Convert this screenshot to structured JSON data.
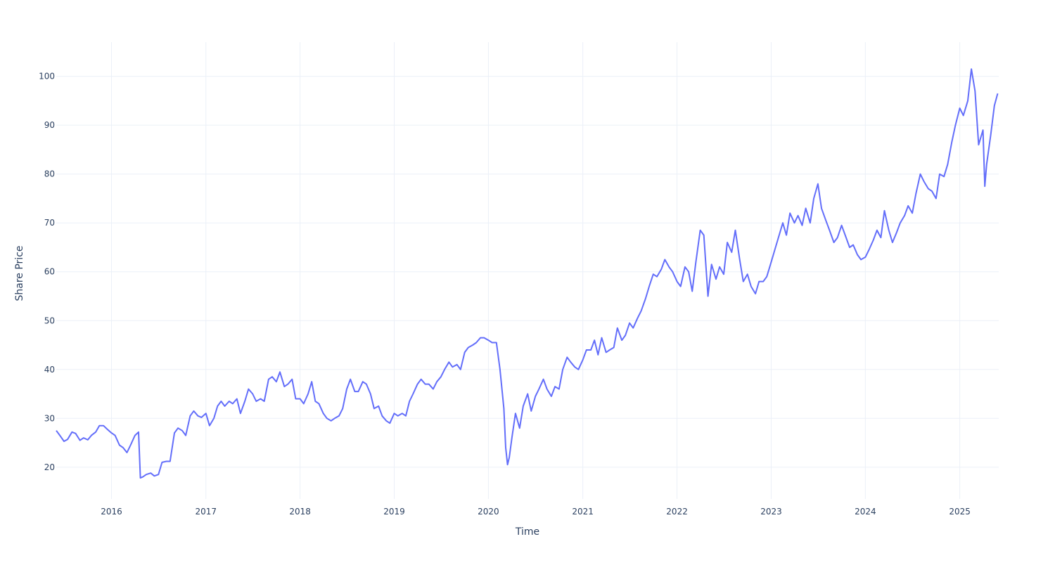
{
  "chart_data": {
    "type": "line",
    "title": "",
    "xlabel": "Time",
    "ylabel": "Share Price",
    "x_type": "date",
    "xlim": [
      "2015-06-01",
      "2025-06-01"
    ],
    "ylim": [
      13.5,
      107
    ],
    "grid": true,
    "legend": "none",
    "line_color": "#636efa",
    "x_ticks": [
      {
        "value": "2016-01-01",
        "label": "2016"
      },
      {
        "value": "2017-01-01",
        "label": "2017"
      },
      {
        "value": "2018-01-01",
        "label": "2018"
      },
      {
        "value": "2019-01-01",
        "label": "2019"
      },
      {
        "value": "2020-01-01",
        "label": "2020"
      },
      {
        "value": "2021-01-01",
        "label": "2021"
      },
      {
        "value": "2022-01-01",
        "label": "2022"
      },
      {
        "value": "2023-01-01",
        "label": "2023"
      },
      {
        "value": "2024-01-01",
        "label": "2024"
      },
      {
        "value": "2025-01-01",
        "label": "2025"
      }
    ],
    "y_ticks": [
      {
        "value": 20,
        "label": "20"
      },
      {
        "value": 30,
        "label": "30"
      },
      {
        "value": 40,
        "label": "40"
      },
      {
        "value": 50,
        "label": "50"
      },
      {
        "value": 60,
        "label": "60"
      },
      {
        "value": 70,
        "label": "70"
      },
      {
        "value": 80,
        "label": "80"
      },
      {
        "value": 90,
        "label": "90"
      },
      {
        "value": 100,
        "label": "100"
      }
    ],
    "series": [
      {
        "x": [
          "2015-06-01",
          "2015-06-15",
          "2015-07-01",
          "2015-07-15",
          "2015-08-01",
          "2015-08-15",
          "2015-09-01",
          "2015-09-15",
          "2015-10-01",
          "2015-10-15",
          "2015-11-01",
          "2015-11-15",
          "2015-12-01",
          "2015-12-15",
          "2016-01-01",
          "2016-01-15",
          "2016-02-01",
          "2016-02-15",
          "2016-03-01",
          "2016-03-15",
          "2016-04-01",
          "2016-04-15",
          "2016-04-22",
          "2016-05-01",
          "2016-05-15",
          "2016-06-01",
          "2016-06-15",
          "2016-07-01",
          "2016-07-15",
          "2016-08-01",
          "2016-08-15",
          "2016-09-01",
          "2016-09-15",
          "2016-10-01",
          "2016-10-15",
          "2016-11-01",
          "2016-11-15",
          "2016-12-01",
          "2016-12-15",
          "2017-01-01",
          "2017-01-15",
          "2017-02-01",
          "2017-02-15",
          "2017-03-01",
          "2017-03-15",
          "2017-04-01",
          "2017-04-15",
          "2017-05-01",
          "2017-05-15",
          "2017-06-01",
          "2017-06-15",
          "2017-07-01",
          "2017-07-15",
          "2017-08-01",
          "2017-08-15",
          "2017-09-01",
          "2017-09-15",
          "2017-10-01",
          "2017-10-15",
          "2017-11-01",
          "2017-11-15",
          "2017-12-01",
          "2017-12-15",
          "2018-01-01",
          "2018-01-15",
          "2018-02-01",
          "2018-02-15",
          "2018-03-01",
          "2018-03-15",
          "2018-04-01",
          "2018-04-15",
          "2018-05-01",
          "2018-05-15",
          "2018-06-01",
          "2018-06-15",
          "2018-07-01",
          "2018-07-15",
          "2018-08-01",
          "2018-08-15",
          "2018-09-01",
          "2018-09-15",
          "2018-10-01",
          "2018-10-15",
          "2018-11-01",
          "2018-11-15",
          "2018-12-01",
          "2018-12-15",
          "2019-01-01",
          "2019-01-15",
          "2019-02-01",
          "2019-02-15",
          "2019-03-01",
          "2019-03-15",
          "2019-04-01",
          "2019-04-15",
          "2019-05-01",
          "2019-05-15",
          "2019-06-01",
          "2019-06-15",
          "2019-07-01",
          "2019-07-15",
          "2019-08-01",
          "2019-08-15",
          "2019-09-01",
          "2019-09-15",
          "2019-10-01",
          "2019-10-15",
          "2019-11-01",
          "2019-11-15",
          "2019-12-01",
          "2019-12-15",
          "2020-01-01",
          "2020-01-15",
          "2020-02-01",
          "2020-02-15",
          "2020-03-01",
          "2020-03-08",
          "2020-03-15",
          "2020-03-22",
          "2020-04-01",
          "2020-04-15",
          "2020-05-01",
          "2020-05-15",
          "2020-06-01",
          "2020-06-15",
          "2020-07-01",
          "2020-07-15",
          "2020-08-01",
          "2020-08-15",
          "2020-09-01",
          "2020-09-15",
          "2020-10-01",
          "2020-10-15",
          "2020-11-01",
          "2020-11-15",
          "2020-12-01",
          "2020-12-15",
          "2021-01-01",
          "2021-01-15",
          "2021-02-01",
          "2021-02-15",
          "2021-03-01",
          "2021-03-15",
          "2021-04-01",
          "2021-04-15",
          "2021-05-01",
          "2021-05-15",
          "2021-06-01",
          "2021-06-15",
          "2021-07-01",
          "2021-07-15",
          "2021-08-01",
          "2021-08-15",
          "2021-09-01",
          "2021-09-15",
          "2021-10-01",
          "2021-10-15",
          "2021-11-01",
          "2021-11-15",
          "2021-12-01",
          "2021-12-15",
          "2022-01-01",
          "2022-01-15",
          "2022-02-01",
          "2022-02-15",
          "2022-03-01",
          "2022-03-15",
          "2022-04-01",
          "2022-04-15",
          "2022-05-01",
          "2022-05-15",
          "2022-06-01",
          "2022-06-15",
          "2022-07-01",
          "2022-07-15",
          "2022-08-01",
          "2022-08-15",
          "2022-09-01",
          "2022-09-15",
          "2022-10-01",
          "2022-10-15",
          "2022-11-01",
          "2022-11-15",
          "2022-12-01",
          "2022-12-15",
          "2023-01-01",
          "2023-01-15",
          "2023-02-01",
          "2023-02-15",
          "2023-03-01",
          "2023-03-15",
          "2023-04-01",
          "2023-04-15",
          "2023-05-01",
          "2023-05-15",
          "2023-06-01",
          "2023-06-15",
          "2023-07-01",
          "2023-07-15",
          "2023-08-01",
          "2023-08-15",
          "2023-09-01",
          "2023-09-15",
          "2023-10-01",
          "2023-10-15",
          "2023-11-01",
          "2023-11-15",
          "2023-12-01",
          "2023-12-15",
          "2024-01-01",
          "2024-01-15",
          "2024-02-01",
          "2024-02-15",
          "2024-03-01",
          "2024-03-15",
          "2024-04-01",
          "2024-04-15",
          "2024-05-01",
          "2024-05-15",
          "2024-06-01",
          "2024-06-15",
          "2024-07-01",
          "2024-07-15",
          "2024-08-01",
          "2024-08-15",
          "2024-09-01",
          "2024-09-15",
          "2024-10-01",
          "2024-10-15",
          "2024-11-01",
          "2024-11-15",
          "2024-12-01",
          "2024-12-15",
          "2025-01-01",
          "2025-01-15",
          "2025-02-01",
          "2025-02-15",
          "2025-03-01",
          "2025-03-15",
          "2025-04-01",
          "2025-04-08",
          "2025-04-15",
          "2025-05-01",
          "2025-05-15",
          "2025-05-28"
        ],
        "y": [
          27.5,
          26.5,
          25.3,
          25.7,
          27.2,
          26.9,
          25.5,
          26.0,
          25.6,
          26.5,
          27.2,
          28.5,
          28.5,
          27.8,
          27.0,
          26.5,
          24.5,
          24.0,
          23.0,
          24.5,
          26.5,
          27.2,
          17.8,
          18.0,
          18.5,
          18.8,
          18.2,
          18.5,
          21.0,
          21.2,
          21.2,
          27.0,
          28.0,
          27.5,
          26.5,
          30.5,
          31.5,
          30.5,
          30.2,
          31.0,
          28.5,
          30.0,
          32.5,
          33.5,
          32.5,
          33.5,
          33.0,
          34.0,
          31.0,
          33.5,
          36.0,
          35.0,
          33.5,
          34.0,
          33.5,
          38.0,
          38.5,
          37.5,
          39.5,
          36.5,
          37.0,
          38.0,
          34.0,
          34.0,
          33.0,
          35.0,
          37.5,
          33.5,
          33.0,
          31.0,
          30.0,
          29.5,
          30.0,
          30.5,
          32.0,
          36.0,
          38.0,
          35.5,
          35.5,
          37.5,
          37.0,
          35.0,
          32.0,
          32.5,
          30.5,
          29.5,
          29.0,
          31.0,
          30.5,
          31.0,
          30.5,
          33.5,
          35.0,
          37.0,
          38.0,
          37.0,
          37.0,
          36.0,
          37.5,
          38.5,
          40.0,
          41.5,
          40.5,
          41.0,
          40.0,
          43.5,
          44.5,
          45.0,
          45.5,
          46.5,
          46.5,
          46.0,
          45.5,
          45.5,
          40.0,
          32.0,
          24.0,
          20.5,
          22.0,
          26.0,
          31.0,
          28.0,
          32.5,
          35.0,
          31.5,
          34.5,
          36.0,
          38.0,
          36.0,
          34.5,
          36.5,
          36.0,
          40.0,
          42.5,
          41.5,
          40.5,
          40.0,
          42.0,
          44.0,
          44.0,
          46.0,
          43.0,
          46.5,
          43.5,
          44.0,
          44.5,
          48.5,
          46.0,
          47.0,
          49.5,
          48.5,
          50.5,
          52.0,
          54.5,
          57.0,
          59.5,
          59.0,
          60.5,
          62.5,
          61.0,
          60.0,
          58.0,
          57.0,
          61.0,
          60.0,
          56.0,
          62.0,
          68.5,
          67.5,
          55.0,
          61.5,
          58.5,
          61.0,
          59.5,
          66.0,
          64.0,
          68.5,
          62.5,
          58.0,
          59.5,
          57.0,
          55.5,
          58.0,
          58.0,
          59.0,
          62.0,
          64.5,
          67.5,
          70.0,
          67.5,
          72.0,
          70.0,
          71.5,
          69.5,
          73.0,
          70.0,
          75.0,
          78.0,
          73.0,
          70.5,
          68.5,
          66.0,
          67.0,
          69.5,
          67.5,
          65.0,
          65.5,
          63.5,
          62.5,
          63.0,
          64.5,
          66.5,
          68.5,
          67.0,
          72.5,
          68.5,
          66.0,
          68.0,
          70.0,
          71.5,
          73.5,
          72.0,
          76.0,
          80.0,
          78.5,
          77.0,
          76.5,
          75.0,
          80.0,
          79.5,
          82.0,
          86.5,
          90.0,
          93.5,
          92.0,
          95.0,
          101.5,
          97.0,
          86.0,
          89.0,
          77.5,
          82.0,
          88.0,
          94.0,
          96.5
        ]
      }
    ]
  }
}
